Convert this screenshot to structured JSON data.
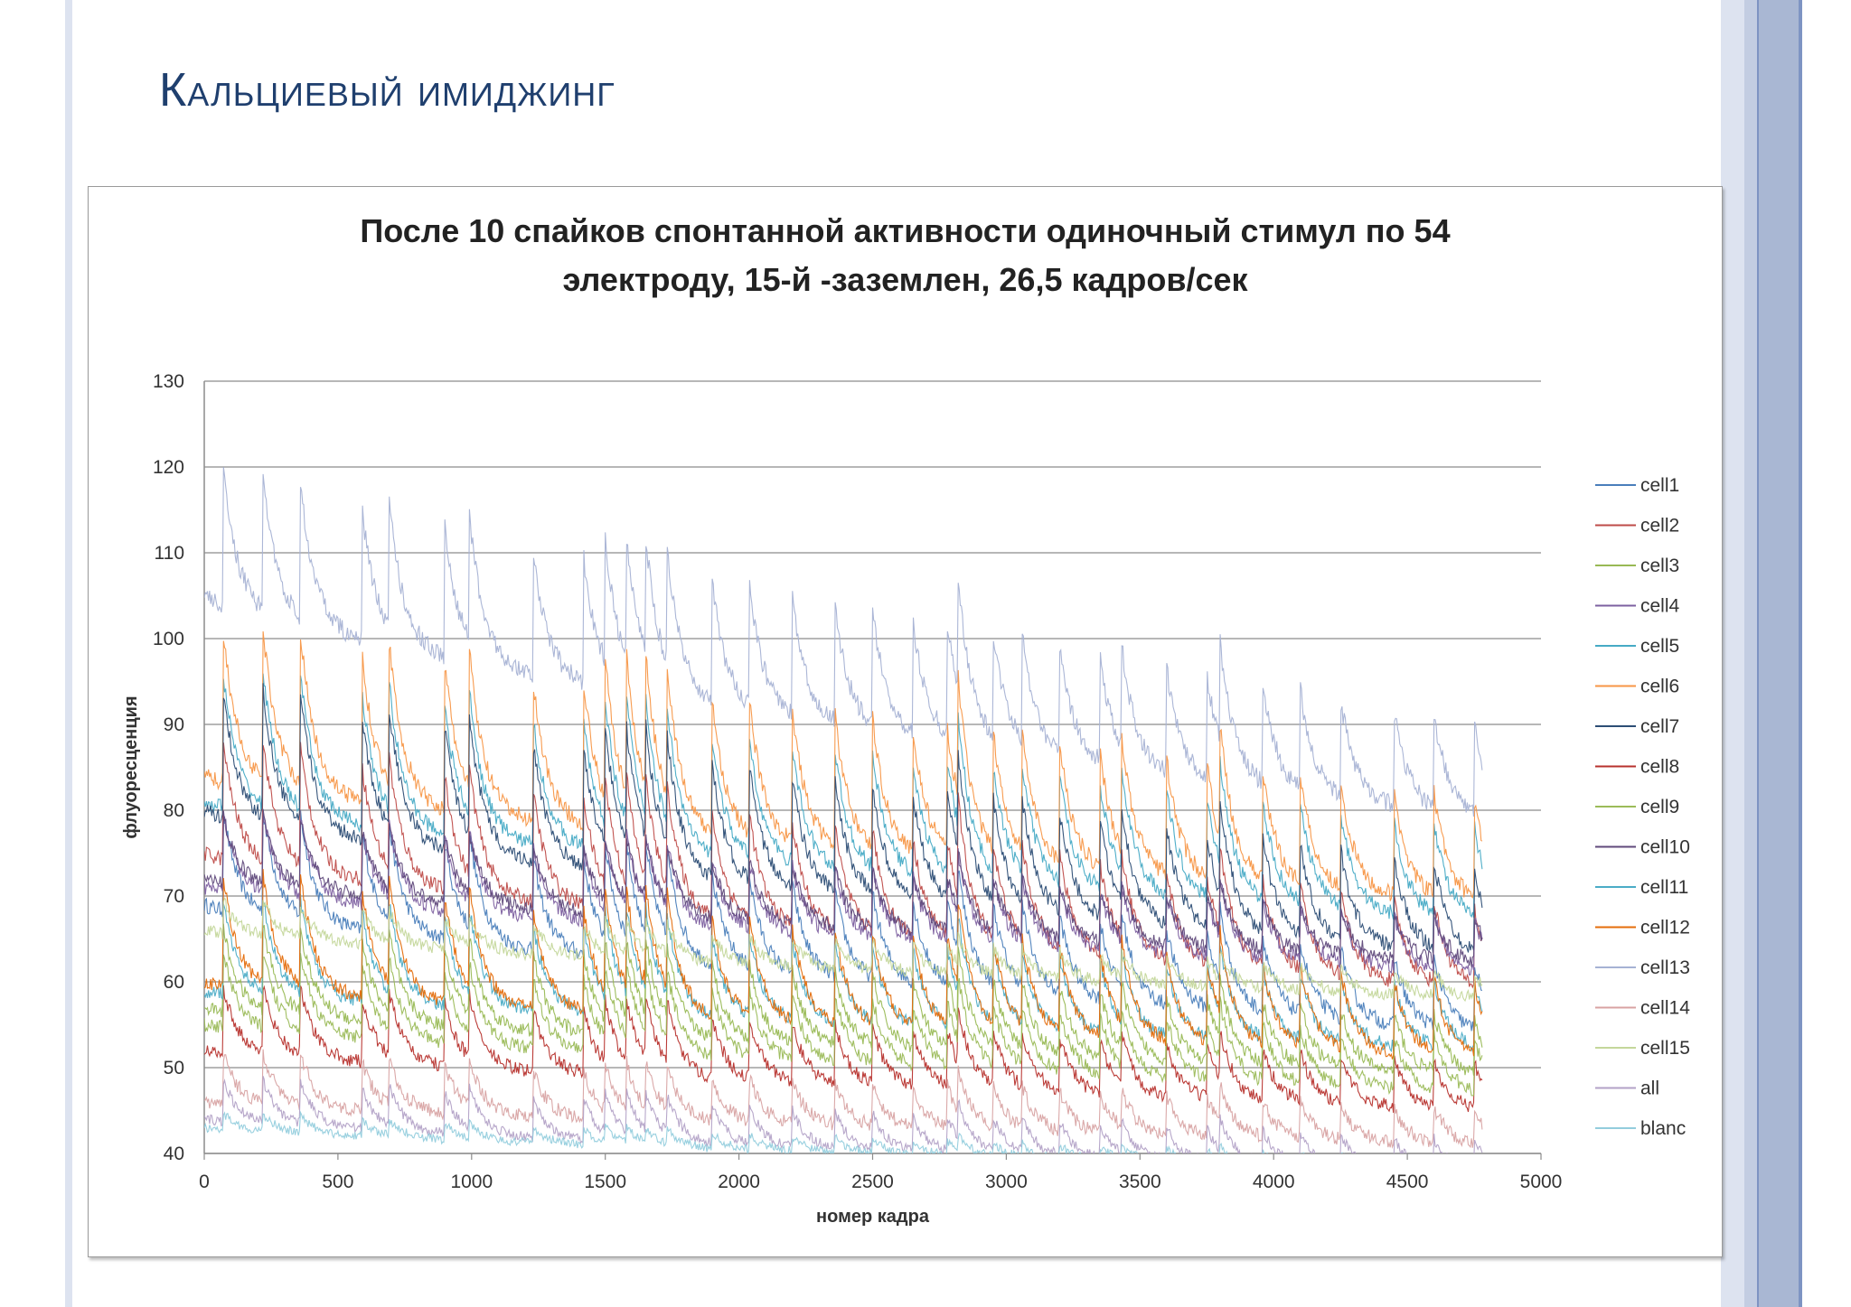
{
  "slide": {
    "title": "Кальциевый имиджинг"
  },
  "colors": {
    "title": "#1f3f6e",
    "stripe_dark": "#a9b7d3",
    "stripe_mid": "#c3cde2",
    "stripe_light": "#dde3f0",
    "stripe_line": "#7e94c3"
  },
  "chart_data": {
    "type": "line",
    "title_lines": [
      "После 10 спайков спонтанной активности одиночный стимул по 54",
      "электроду, 15-й -заземлен, 26,5 кадров/сек"
    ],
    "xlabel": "номер кадра",
    "ylabel": "флуоресценция",
    "xlim": [
      0,
      5000
    ],
    "ylim": [
      40,
      130
    ],
    "xticks": [
      0,
      500,
      1000,
      1500,
      2000,
      2500,
      3000,
      3500,
      4000,
      4500,
      5000
    ],
    "yticks": [
      40,
      50,
      60,
      70,
      80,
      90,
      100,
      110,
      120,
      130
    ],
    "grid": "horizontal",
    "legend_position": "right",
    "n_frames": 4780,
    "stimulus_frames": [
      70,
      220,
      360,
      590,
      690,
      900,
      990,
      1230,
      1420,
      1500,
      1580,
      1650,
      1730,
      1900,
      2040,
      2200,
      2360,
      2500,
      2650,
      2780,
      2820,
      2950,
      3060,
      3200,
      3350,
      3430,
      3600,
      3750,
      3800,
      3960,
      4100,
      4250,
      4450,
      4600,
      4750
    ],
    "series": [
      {
        "name": "cell1",
        "color": "#4a7ebb",
        "start": 69,
        "end": 54,
        "amplitude": 12,
        "noise": 0.9
      },
      {
        "name": "cell2",
        "color": "#be4b48",
        "start": 75,
        "end": 59,
        "amplitude": 14,
        "noise": 0.9
      },
      {
        "name": "cell3",
        "color": "#98b954",
        "start": 57,
        "end": 49,
        "amplitude": 10,
        "noise": 0.8
      },
      {
        "name": "cell4",
        "color": "#7d60a0",
        "start": 71,
        "end": 61,
        "amplitude": 9,
        "noise": 0.9
      },
      {
        "name": "cell5",
        "color": "#46aac5",
        "start": 81,
        "end": 67,
        "amplitude": 16,
        "noise": 0.9
      },
      {
        "name": "cell6",
        "color": "#f79646",
        "start": 84,
        "end": 69,
        "amplitude": 18,
        "noise": 1.0
      },
      {
        "name": "cell7",
        "color": "#2c4d75",
        "start": 80,
        "end": 63,
        "amplitude": 15,
        "noise": 0.9
      },
      {
        "name": "cell8",
        "color": "#b7312d",
        "start": 52,
        "end": 45,
        "amplitude": 8,
        "noise": 0.8
      },
      {
        "name": "cell9",
        "color": "#9bbb59",
        "start": 55,
        "end": 47,
        "amplitude": 9,
        "noise": 0.8
      },
      {
        "name": "cell10",
        "color": "#604a7b",
        "start": 72,
        "end": 62,
        "amplitude": 8,
        "noise": 0.8
      },
      {
        "name": "cell11",
        "color": "#4bacc6",
        "start": 59,
        "end": 52,
        "amplitude": 11,
        "noise": 0.8
      },
      {
        "name": "cell12",
        "color": "#e46c0a",
        "start": 60,
        "end": 51,
        "amplitude": 13,
        "noise": 0.8
      },
      {
        "name": "cell13",
        "color": "#a6b2d4",
        "start": 105,
        "end": 79,
        "amplitude": 16,
        "noise": 1.1
      },
      {
        "name": "cell14",
        "color": "#d8a3a3",
        "start": 46,
        "end": 41,
        "amplitude": 6,
        "noise": 0.8
      },
      {
        "name": "cell15",
        "color": "#c4d79b",
        "start": 66,
        "end": 58,
        "amplitude": 4,
        "noise": 0.7
      },
      {
        "name": "all",
        "color": "#b3a2c7",
        "start": 44,
        "end": 38,
        "amplitude": 5,
        "noise": 0.6
      },
      {
        "name": "blanc",
        "color": "#93cddd",
        "start": 43,
        "end": 38,
        "amplitude": 2,
        "noise": 0.5
      }
    ]
  }
}
